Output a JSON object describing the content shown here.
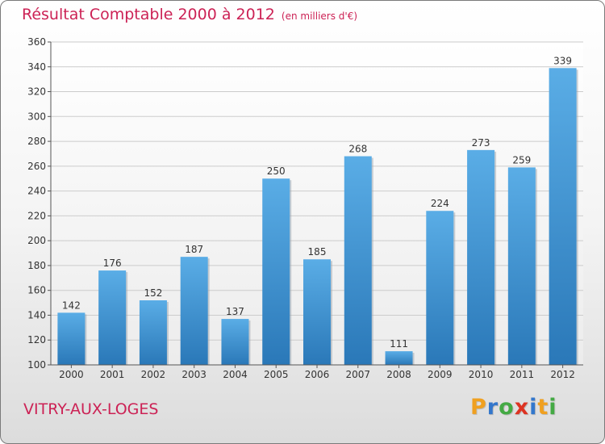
{
  "header": {
    "title": "Résultat Comptable 2000 à 2012",
    "subtitle": "(en milliers d'€)"
  },
  "footer": {
    "commune": "VITRY-AUX-LOGES",
    "logo_letters": [
      "P",
      "r",
      "o",
      "x",
      "i",
      "t",
      "i"
    ],
    "logo_colors": [
      "#f0a020",
      "#3377cc",
      "#44aa44",
      "#dd3322",
      "#3377cc",
      "#f0a020",
      "#44aa44"
    ]
  },
  "colors": {
    "bar_light": "#5aade6",
    "bar_dark": "#2a78b8",
    "accent": "#cc2255",
    "grid": "#cccccc"
  },
  "chart_data": {
    "type": "bar",
    "title": "Résultat Comptable 2000 à 2012",
    "subtitle": "(en milliers d'€)",
    "xlabel": "",
    "ylabel": "",
    "categories": [
      "2000",
      "2001",
      "2002",
      "2003",
      "2004",
      "2005",
      "2006",
      "2007",
      "2008",
      "2009",
      "2010",
      "2011",
      "2012"
    ],
    "values": [
      142,
      176,
      152,
      187,
      137,
      250,
      185,
      268,
      111,
      224,
      273,
      259,
      339
    ],
    "ylim": [
      100,
      360
    ],
    "yticks": [
      100,
      120,
      140,
      160,
      180,
      200,
      220,
      240,
      260,
      280,
      300,
      320,
      340,
      360
    ],
    "grid": true
  }
}
